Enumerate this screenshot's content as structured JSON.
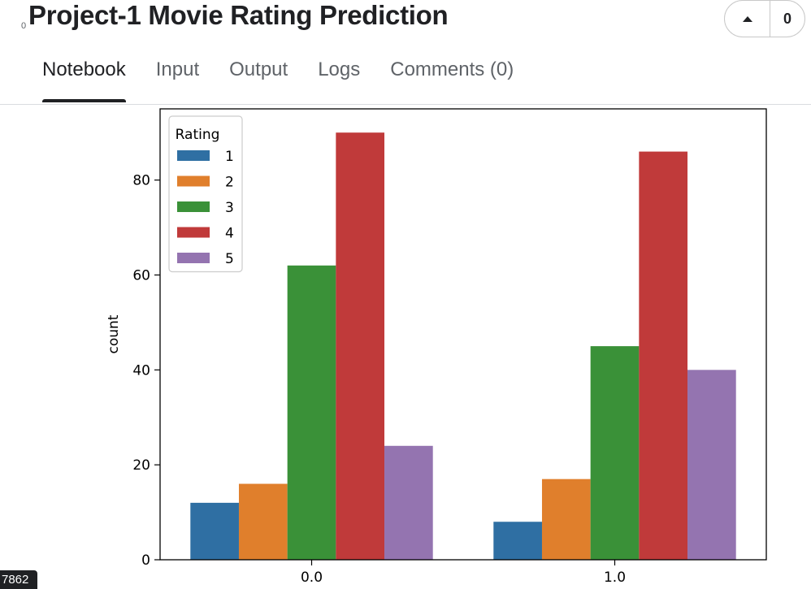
{
  "header": {
    "prefix": "0",
    "title": "Project-1 Movie Rating Prediction",
    "vote_count": "0"
  },
  "tabs": [
    {
      "label": "Notebook",
      "active": true
    },
    {
      "label": "Input",
      "active": false
    },
    {
      "label": "Output",
      "active": false
    },
    {
      "label": "Logs",
      "active": false
    },
    {
      "label": "Comments (0)",
      "active": false
    }
  ],
  "badge": "7862",
  "colors": {
    "1": "#2f6fa3",
    "2": "#e07f2c",
    "3": "#3a9138",
    "4": "#c03a3a",
    "5": "#9474b0"
  },
  "chart_data": {
    "type": "bar",
    "title": "",
    "xlabel": "",
    "ylabel": "count",
    "categories": [
      "0.0",
      "1.0"
    ],
    "legend_title": "Rating",
    "legend_position": "top-left",
    "ylim": [
      0,
      95
    ],
    "yticks": [
      0,
      20,
      40,
      60,
      80
    ],
    "grid": false,
    "series": [
      {
        "name": "1",
        "values": [
          12,
          8
        ]
      },
      {
        "name": "2",
        "values": [
          16,
          17
        ]
      },
      {
        "name": "3",
        "values": [
          62,
          45
        ]
      },
      {
        "name": "4",
        "values": [
          90,
          86
        ]
      },
      {
        "name": "5",
        "values": [
          24,
          40
        ]
      }
    ]
  }
}
